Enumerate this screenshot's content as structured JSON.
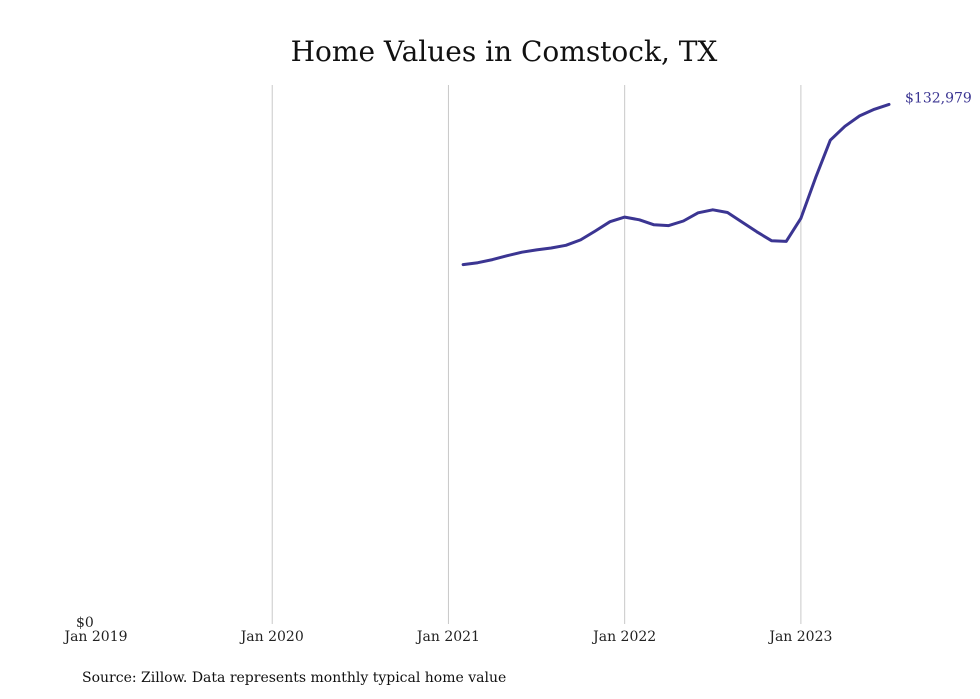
{
  "chart_data": {
    "type": "line",
    "title": "Home Values in Comstock, TX",
    "source": "Source: Zillow. Data represents monthly typical home value",
    "xlabel": "",
    "ylabel": "",
    "x_ticks": [
      {
        "label": "Jan 2019",
        "date": "2019-01"
      },
      {
        "label": "Jan 2020",
        "date": "2020-01"
      },
      {
        "label": "Jan 2021",
        "date": "2021-01"
      },
      {
        "label": "Jan 2022",
        "date": "2022-01"
      },
      {
        "label": "Jan 2023",
        "date": "2023-01"
      }
    ],
    "x_range": [
      "2019-01",
      "2023-07"
    ],
    "y_ticks": [
      {
        "label": "$0",
        "value": 0
      }
    ],
    "ylim": [
      0,
      138000
    ],
    "grid": "vertical",
    "line_color": "#3b3592",
    "end_label": "$132,979",
    "series": [
      {
        "points": [
          [
            "2021-02",
            91500
          ],
          [
            "2021-03",
            92000
          ],
          [
            "2021-04",
            92800
          ],
          [
            "2021-05",
            93800
          ],
          [
            "2021-06",
            94700
          ],
          [
            "2021-07",
            95300
          ],
          [
            "2021-08",
            95800
          ],
          [
            "2021-09",
            96500
          ],
          [
            "2021-10",
            97900
          ],
          [
            "2021-11",
            100200
          ],
          [
            "2021-12",
            102600
          ],
          [
            "2022-01",
            103800
          ],
          [
            "2022-02",
            103100
          ],
          [
            "2022-03",
            101800
          ],
          [
            "2022-04",
            101600
          ],
          [
            "2022-05",
            102800
          ],
          [
            "2022-06",
            104900
          ],
          [
            "2022-07",
            105700
          ],
          [
            "2022-08",
            105000
          ],
          [
            "2022-09",
            102500
          ],
          [
            "2022-10",
            100000
          ],
          [
            "2022-11",
            97700
          ],
          [
            "2022-12",
            97500
          ],
          [
            "2023-01",
            103500
          ],
          [
            "2023-02",
            114000
          ],
          [
            "2023-03",
            123700
          ],
          [
            "2023-04",
            127300
          ],
          [
            "2023-05",
            130000
          ],
          [
            "2023-06",
            131700
          ],
          [
            "2023-07",
            132979
          ]
        ]
      }
    ]
  }
}
